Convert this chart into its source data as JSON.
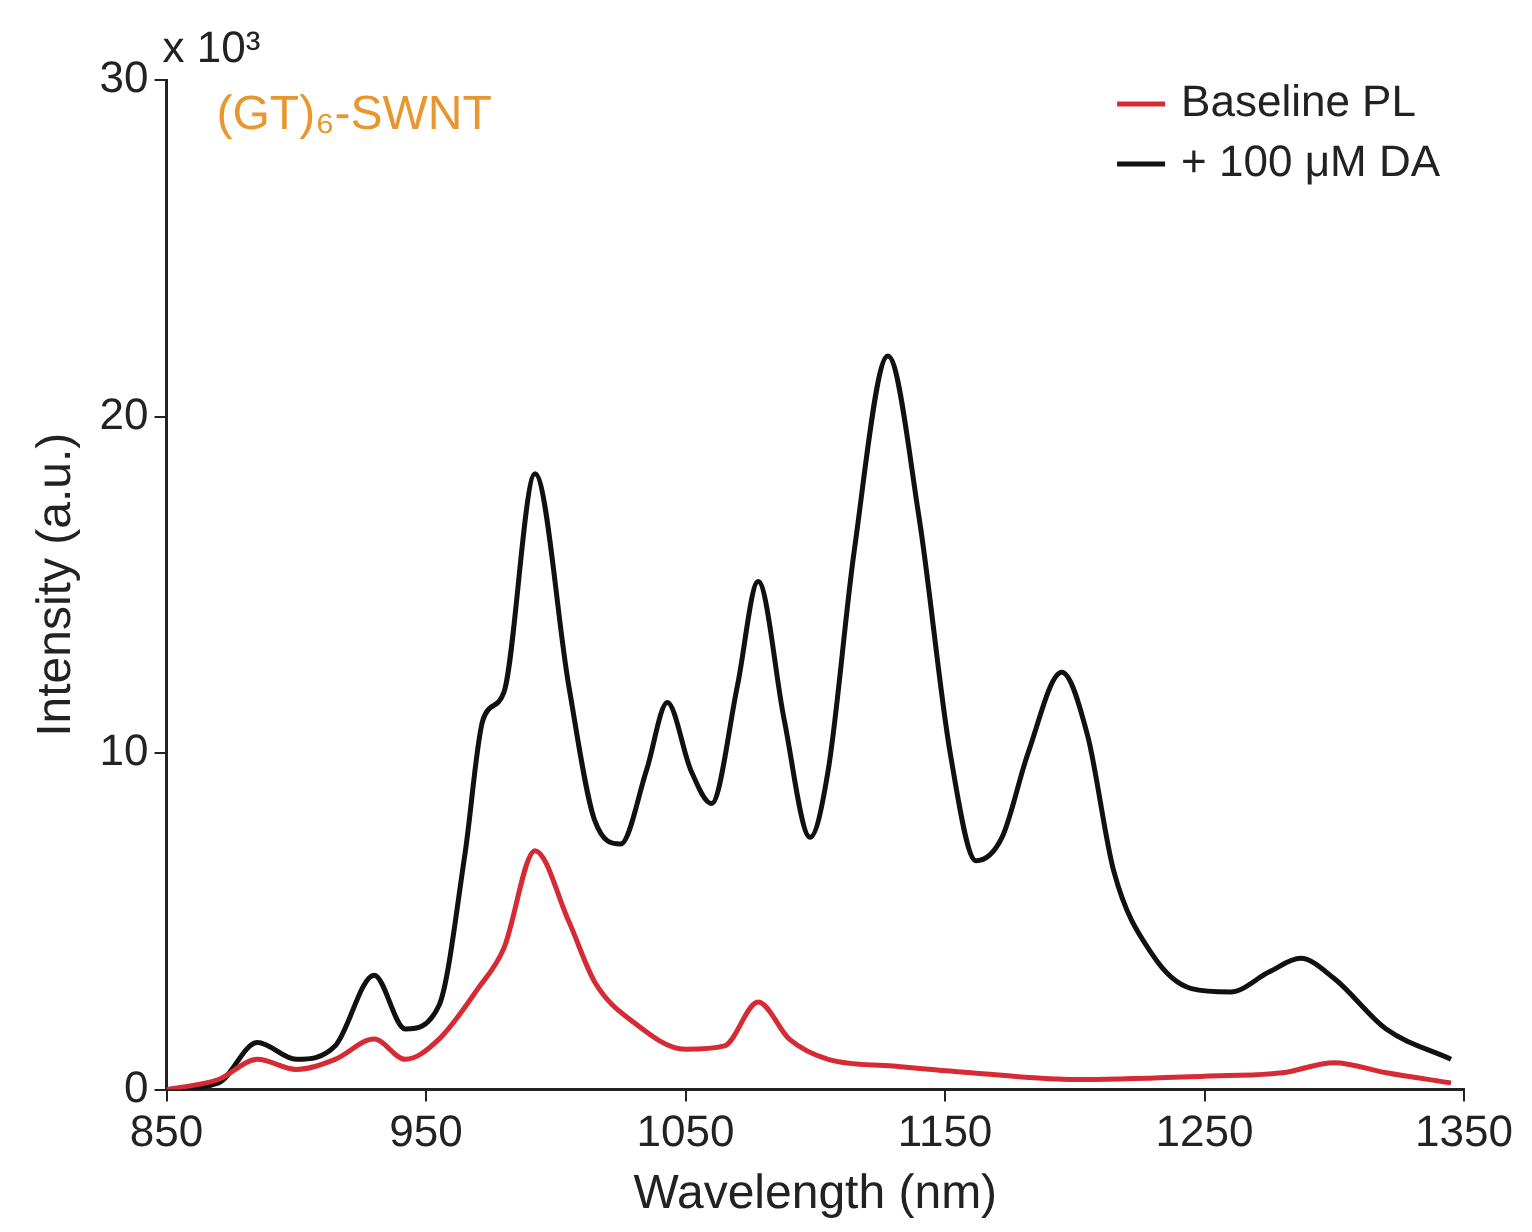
{
  "chart_data": {
    "type": "line",
    "xlabel": "Wavelength (nm)",
    "ylabel": "Intensity (a.u.)",
    "annotations": [
      "x 10³",
      "(GT)₆-SWNT"
    ],
    "xlim": [
      850,
      1350
    ],
    "xticks": [
      850,
      950,
      1050,
      1150,
      1250,
      1350
    ],
    "ylim": [
      0,
      30
    ],
    "yticks": [
      0,
      10,
      20,
      30
    ],
    "grid": false,
    "legend": "top right",
    "marker": "none",
    "line_style": "solid",
    "series": [
      {
        "name": "Baseline PL",
        "color": "#d62a35",
        "x": [
          850,
          870,
          885,
          900,
          915,
          930,
          942,
          955,
          970,
          980,
          992,
          1005,
          1015,
          1030,
          1050,
          1065,
          1078,
          1090,
          1105,
          1130,
          1160,
          1200,
          1250,
          1280,
          1300,
          1320,
          1345
        ],
        "values": [
          0,
          0.3,
          0.9,
          0.6,
          0.9,
          1.5,
          0.9,
          1.5,
          3,
          4.2,
          7.1,
          5,
          3.2,
          2,
          1.2,
          1.3,
          2.6,
          1.5,
          0.9,
          0.7,
          0.5,
          0.3,
          0.4,
          0.5,
          0.8,
          0.5,
          0.2
        ]
      },
      {
        "name": "+ 100 μM DA",
        "color": "#111111",
        "x": [
          850,
          870,
          885,
          900,
          915,
          930,
          942,
          955,
          965,
          972,
          980,
          992,
          1005,
          1015,
          1025,
          1035,
          1043,
          1052,
          1060,
          1070,
          1078,
          1088,
          1098,
          1105,
          1115,
          1128,
          1140,
          1152,
          1162,
          1172,
          1182,
          1195,
          1205,
          1215,
          1230,
          1245,
          1260,
          1275,
          1287,
          1300,
          1320,
          1345
        ],
        "values": [
          0,
          0.2,
          1.4,
          0.9,
          1.3,
          3.4,
          1.8,
          2.5,
          7,
          11,
          11.8,
          18.3,
          12,
          8,
          7.3,
          9.5,
          11.5,
          9.5,
          8.5,
          12,
          15.1,
          11,
          7.5,
          9.5,
          16,
          21.8,
          17,
          10,
          6.8,
          7.5,
          10,
          12.4,
          10.5,
          6.5,
          4,
          3,
          2.9,
          3.5,
          3.9,
          3.3,
          1.8,
          0.9
        ]
      }
    ]
  }
}
